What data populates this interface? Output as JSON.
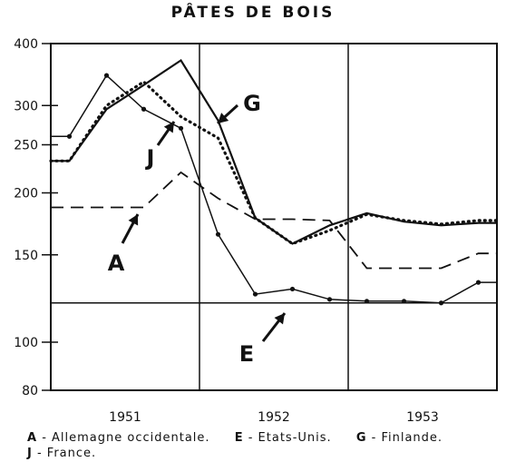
{
  "chart_data": {
    "type": "line",
    "title": "PÂTES DE BOIS",
    "xlabel": "",
    "ylabel": "",
    "y_scale": "log",
    "ylim": [
      80,
      400
    ],
    "y_ticks": [
      80,
      100,
      150,
      200,
      250,
      300,
      400
    ],
    "reference_line": 120,
    "grid": "vertical lines between years",
    "x_ticks": [
      "1951",
      "1952",
      "1953"
    ],
    "x": [
      "1951-Q1",
      "1951-Q2",
      "1951-Q3",
      "1951-Q4",
      "1952-Q1",
      "1952-Q2",
      "1952-Q3",
      "1952-Q4",
      "1953-Q1",
      "1953-Q2",
      "1953-Q3",
      "1953-Q4"
    ],
    "series": [
      {
        "name": "A",
        "style": "dashed",
        "values": [
          187,
          187,
          187,
          220,
          195,
          177,
          177,
          176,
          141,
          141,
          141,
          151
        ]
      },
      {
        "name": "E",
        "style": "thin-solid-dots",
        "values": [
          260,
          345,
          295,
          270,
          165,
          125,
          128,
          122,
          121,
          121,
          120,
          132
        ]
      },
      {
        "name": "G",
        "style": "dotted",
        "values": [
          232,
          300,
          335,
          285,
          258,
          178,
          158,
          168,
          181,
          176,
          173,
          176
        ]
      },
      {
        "name": "J",
        "style": "solid",
        "values": [
          232,
          295,
          330,
          370,
          280,
          178,
          158,
          172,
          182,
          175,
          172,
          174
        ]
      }
    ],
    "annotations": [
      {
        "label": "A",
        "target_series": "A"
      },
      {
        "label": "E",
        "target_series": "E"
      },
      {
        "label": "G",
        "target_series": "G"
      },
      {
        "label": "J",
        "target_series": "J"
      }
    ],
    "legend": {
      "position": "bottom",
      "rows": [
        [
          {
            "key": "A",
            "text": "- Allemagne occidentale."
          },
          {
            "key": "E",
            "text": "- Etats-Unis."
          },
          {
            "key": "G",
            "text": "- Finlande."
          }
        ],
        [
          {
            "key": "J",
            "text": "- France."
          }
        ]
      ]
    }
  }
}
